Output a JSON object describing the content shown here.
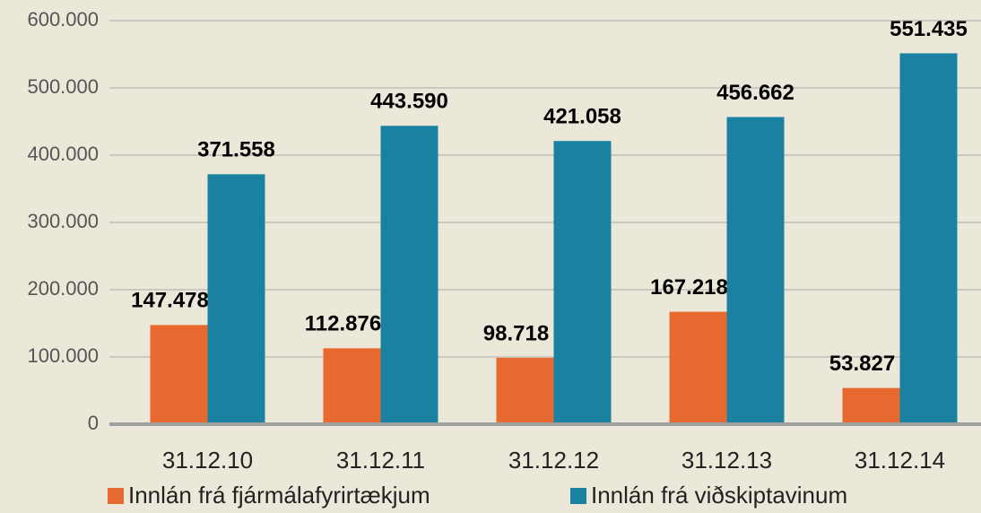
{
  "chart_data": {
    "type": "bar",
    "categories": [
      "31.12.10",
      "31.12.11",
      "31.12.12",
      "31.12.13",
      "31.12.14"
    ],
    "series": [
      {
        "name": "Innlán frá fjármálafyrirtækjum",
        "color": "#e8692f",
        "values": [
          147478,
          112876,
          98718,
          167218,
          53827
        ],
        "value_labels": [
          "147.478",
          "112.876",
          "98.718",
          "167.218",
          "53.827"
        ]
      },
      {
        "name": "Innlán frá viðskiptavinum",
        "color": "#1a82a0",
        "values": [
          371558,
          443590,
          421058,
          456662,
          551435
        ],
        "value_labels": [
          "371.558",
          "443.590",
          "421.058",
          "456.662",
          "551.435"
        ]
      }
    ],
    "ylim": [
      0,
      600000
    ],
    "yticks": [
      0,
      {
        "value": 100000,
        "label": "100.000"
      },
      {
        "value": 200000,
        "label": "200.000"
      },
      {
        "value": 300000,
        "label": "300.000"
      },
      {
        "value": 400000,
        "label": "400.000"
      },
      {
        "value": 500000,
        "label": "500.000"
      },
      {
        "value": 600000,
        "label": "600.000"
      }
    ],
    "grid": true,
    "legend": "bottom"
  }
}
